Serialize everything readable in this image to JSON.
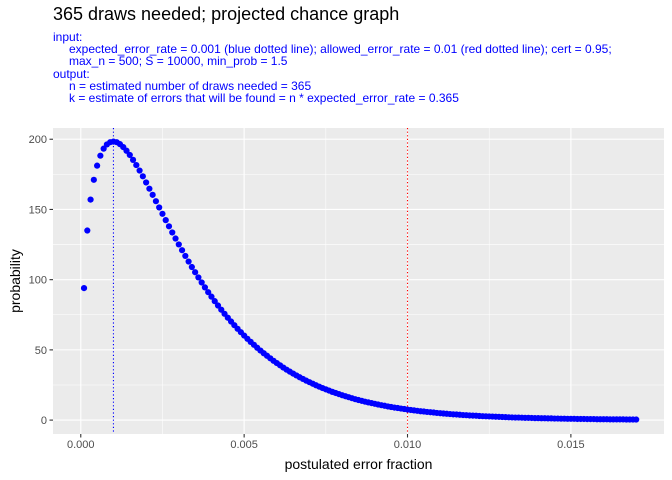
{
  "title": "365 draws needed; projected chance graph",
  "subtitle": [
    {
      "text": "input:",
      "indent": false
    },
    {
      "text": "expected_error_rate = 0.001 (blue dotted line); allowed_error_rate = 0.01 (red dotted line); cert = 0.95;",
      "indent": true
    },
    {
      "text": "max_n = 500; S = 10000, min_prob = 1.5",
      "indent": true
    },
    {
      "text": "output:",
      "indent": false
    },
    {
      "text": "n = estimated number of draws needed = 365",
      "indent": true
    },
    {
      "text": "k = estimate of errors that will be found = n * expected_error_rate = 0.365",
      "indent": true
    }
  ],
  "chart_data": {
    "type": "scatter",
    "xlabel": "postulated error fraction",
    "ylabel": "probability",
    "xlim": [
      -0.00085,
      0.01785
    ],
    "ylim": [
      -9.9,
      208
    ],
    "x_ticks": [
      0.0,
      0.005,
      0.01,
      0.015
    ],
    "x_tick_labels": [
      "0.000",
      "0.005",
      "0.010",
      "0.015"
    ],
    "y_ticks": [
      0,
      50,
      100,
      150,
      200
    ],
    "y_tick_labels": [
      "0",
      "50",
      "100",
      "150",
      "200"
    ],
    "x_minor_ticks": [
      0.0025,
      0.0075,
      0.0125
    ],
    "y_minor_ticks": [
      25,
      75,
      125,
      175
    ],
    "grid": true,
    "point_color": "#0000ff",
    "panel_color": "#ebebeb",
    "grid_color": "#ffffff",
    "vlines": [
      {
        "x": 0.001,
        "color": "#0000ff",
        "style": "dotted"
      },
      {
        "x": 0.01,
        "color": "#ff0000",
        "style": "dotted"
      }
    ],
    "series": [
      {
        "x": [
          0.0001,
          0.0002,
          0.0003,
          0.0004,
          0.0005,
          0.0006,
          0.0007,
          0.0008,
          0.0009,
          0.001,
          0.0011,
          0.0012,
          0.0013,
          0.0014,
          0.0015,
          0.0016,
          0.0017,
          0.0018,
          0.0019,
          0.002,
          0.0021,
          0.0022,
          0.0023,
          0.0024,
          0.0025,
          0.0026,
          0.0027,
          0.0028,
          0.0029,
          0.003,
          0.0031,
          0.0032,
          0.0033,
          0.0034,
          0.0035,
          0.0036,
          0.0037,
          0.0038,
          0.0039,
          0.004,
          0.0041,
          0.0042,
          0.0043,
          0.0044,
          0.0045,
          0.0046,
          0.0047,
          0.0048,
          0.0049,
          0.005,
          0.0051,
          0.0052,
          0.0053,
          0.0054,
          0.0055,
          0.0056,
          0.0057,
          0.0058,
          0.0059,
          0.006,
          0.0061,
          0.0062,
          0.0063,
          0.0064,
          0.0065,
          0.0066,
          0.0067,
          0.0068,
          0.0069,
          0.007,
          0.0071,
          0.0072,
          0.0073,
          0.0074,
          0.0075,
          0.0076,
          0.0077,
          0.0078,
          0.0079,
          0.008,
          0.0081,
          0.0082,
          0.0083,
          0.0084,
          0.0085,
          0.0086,
          0.0087,
          0.0088,
          0.0089,
          0.009,
          0.0091,
          0.0092,
          0.0093,
          0.0094,
          0.0095,
          0.0096,
          0.0097,
          0.0098,
          0.0099,
          0.01,
          0.0101,
          0.0102,
          0.0103,
          0.0104,
          0.0105,
          0.0106,
          0.0107,
          0.0108,
          0.0109,
          0.011,
          0.0111,
          0.0112,
          0.0113,
          0.0114,
          0.0115,
          0.0116,
          0.0117,
          0.0118,
          0.0119,
          0.012,
          0.0121,
          0.0122,
          0.0123,
          0.0124,
          0.0125,
          0.0126,
          0.0127,
          0.0128,
          0.0129,
          0.013,
          0.0131,
          0.0132,
          0.0133,
          0.0134,
          0.0135,
          0.0136,
          0.0137,
          0.0138,
          0.0139,
          0.014,
          0.0141,
          0.0142,
          0.0143,
          0.0144,
          0.0145,
          0.0146,
          0.0147,
          0.0148,
          0.0149,
          0.015,
          0.0151,
          0.0152,
          0.0153,
          0.0154,
          0.0155,
          0.0156,
          0.0157,
          0.0158,
          0.0159,
          0.016,
          0.0161,
          0.0162,
          0.0163,
          0.0164,
          0.0165,
          0.0166,
          0.0167,
          0.0168,
          0.0169,
          0.017
        ],
        "y": [
          94.0,
          135.0,
          157.0,
          171.1,
          181.2,
          188.3,
          193.3,
          196.3,
          197.9,
          198.3,
          197.9,
          196.5,
          194.4,
          191.8,
          188.8,
          185.3,
          181.6,
          177.7,
          173.6,
          169.2,
          164.8,
          160.4,
          155.9,
          151.4,
          146.9,
          142.4,
          138.0,
          133.6,
          129.3,
          125.1,
          121.0,
          116.9,
          112.9,
          109.0,
          105.3,
          101.6,
          98.0,
          94.5,
          91.1,
          87.9,
          84.7,
          81.6,
          78.6,
          75.7,
          72.9,
          70.2,
          67.6,
          65.0,
          62.6,
          60.2,
          57.9,
          55.7,
          53.6,
          51.5,
          49.5,
          47.6,
          45.8,
          44.0,
          42.2,
          40.6,
          39.0,
          37.4,
          35.9,
          34.5,
          33.1,
          31.8,
          30.5,
          29.3,
          28.1,
          27.0,
          25.9,
          24.8,
          23.8,
          22.8,
          21.9,
          21.0,
          20.1,
          19.3,
          18.5,
          17.7,
          17.0,
          16.3,
          15.6,
          14.9,
          14.3,
          13.7,
          13.1,
          12.6,
          12.1,
          11.6,
          11.1,
          10.6,
          10.2,
          9.7,
          9.3,
          8.9,
          8.6,
          8.2,
          7.9,
          7.5,
          7.2,
          6.9,
          6.6,
          6.3,
          6.1,
          5.8,
          5.6,
          5.4,
          5.1,
          4.9,
          4.7,
          4.5,
          4.3,
          4.1,
          4.0,
          3.8,
          3.6,
          3.5,
          3.3,
          3.2,
          3.1,
          2.9,
          2.8,
          2.7,
          2.6,
          2.5,
          2.4,
          2.3,
          2.2,
          2.1,
          2.0,
          1.9,
          1.8,
          1.8,
          1.7,
          1.6,
          1.6,
          1.5,
          1.4,
          1.4,
          1.3,
          1.3,
          1.2,
          1.2,
          1.1,
          1.1,
          1.0,
          1.0,
          0.9,
          0.9,
          0.9,
          0.8,
          0.8,
          0.8,
          0.7,
          0.7,
          0.7,
          0.6,
          0.6,
          0.6,
          0.6,
          0.5,
          0.5,
          0.5,
          0.5,
          0.5,
          0.4,
          0.4,
          0.4,
          0.4
        ]
      }
    ]
  }
}
